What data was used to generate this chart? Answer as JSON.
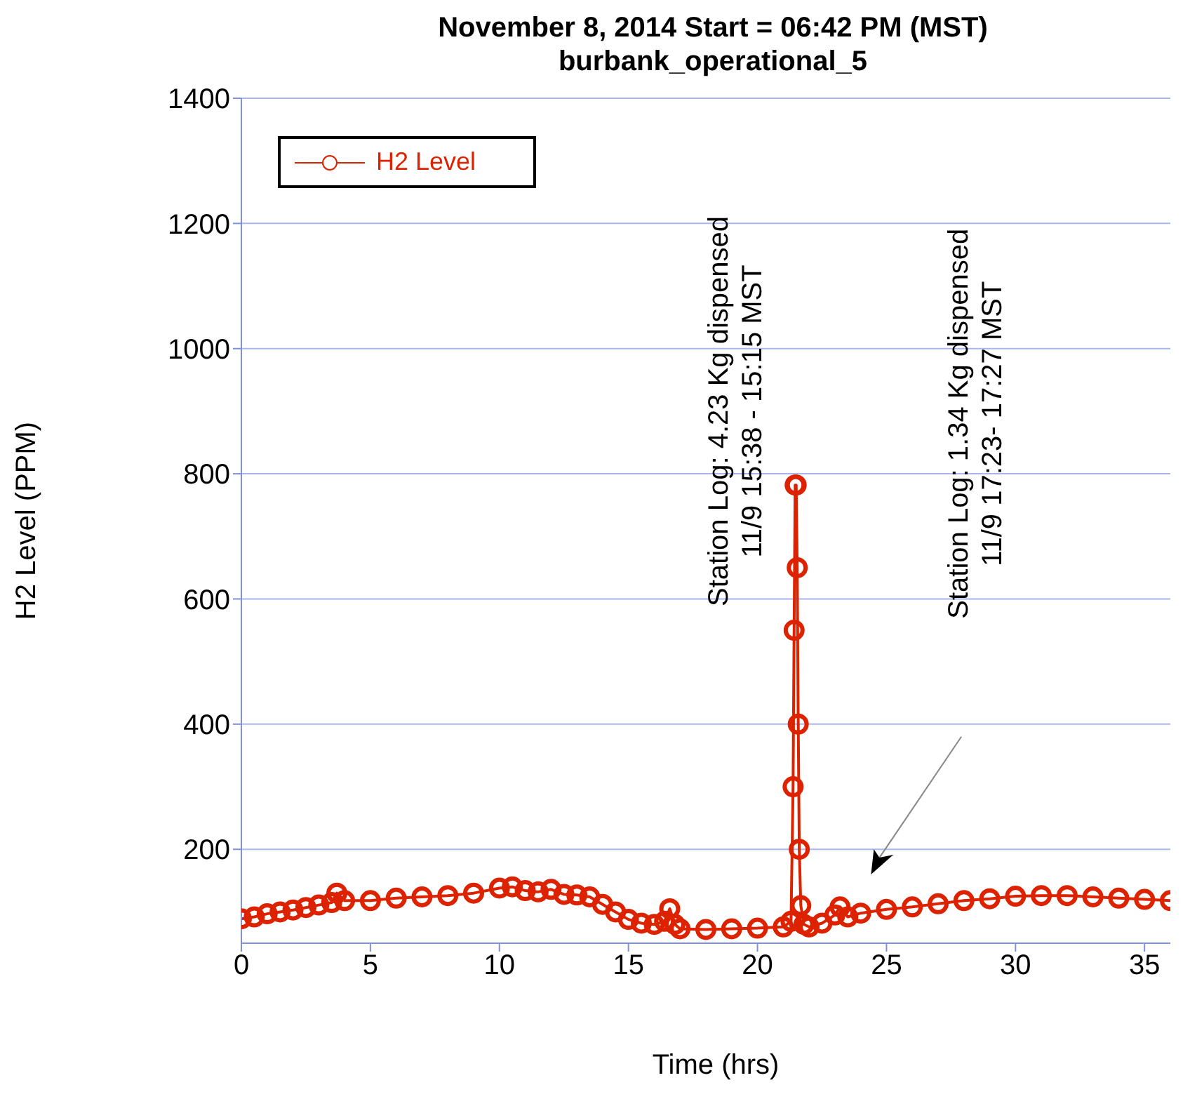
{
  "chart_data": {
    "type": "line",
    "title": "November 8, 2014 Start = 06:42 PM (MST)",
    "subtitle": "burbank_operational_5",
    "xlabel": "Time (hrs)",
    "ylabel": "H2 Level (PPM)",
    "x": [
      0,
      0.5,
      1,
      1.5,
      2,
      2.5,
      3,
      3.5,
      3.7,
      4,
      5,
      6,
      7,
      8,
      9,
      10,
      10.5,
      11,
      11.5,
      12,
      12.5,
      13,
      13.5,
      14,
      14.5,
      15,
      15.5,
      16,
      16.4,
      16.6,
      16.8,
      17,
      18,
      19,
      20,
      21,
      21.3,
      21.38,
      21.42,
      21.46,
      21.5,
      21.54,
      21.58,
      21.62,
      21.68,
      21.8,
      22,
      22.5,
      23,
      23.2,
      23.5,
      24,
      25,
      26,
      27,
      28,
      29,
      30,
      31,
      32,
      33,
      34,
      35,
      36
    ],
    "series": [
      {
        "name": "H2 Level",
        "color": "#dd2200",
        "values": [
          89,
          92,
          97,
          100,
          103,
          107,
          111,
          115,
          130,
          118,
          118,
          122,
          124,
          126,
          130,
          138,
          140,
          134,
          132,
          136,
          128,
          127,
          124,
          112,
          100,
          88,
          82,
          80,
          85,
          105,
          80,
          73,
          72,
          73,
          74,
          76,
          85,
          300,
          550,
          782,
          782,
          650,
          400,
          200,
          110,
          80,
          76,
          82,
          95,
          108,
          92,
          98,
          104,
          108,
          113,
          118,
          121,
          125,
          126,
          126,
          124,
          122,
          120,
          118
        ]
      }
    ],
    "xlim": [
      0,
      36
    ],
    "xticks": [
      0,
      5,
      10,
      15,
      20,
      25,
      30,
      35
    ],
    "ylim": [
      50,
      1400
    ],
    "yticks": [
      200,
      400,
      600,
      800,
      1000,
      1200,
      1400
    ],
    "grid": "y",
    "legend": "top left",
    "marker": "circle",
    "line_style": "solid",
    "annotations": [
      "Station Log: 4.23 Kg dispensed\n11/9 15:38 - 15:15 MST",
      "Station Log: 1.34 Kg dispensed\n11/9 17:23- 17:27 MST"
    ]
  }
}
